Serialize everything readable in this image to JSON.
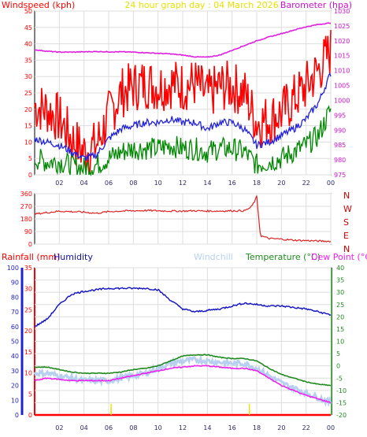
{
  "header": {
    "title": "24 hour graph day : 04 March 2026",
    "windspeed_label": "Windspeed (kph)",
    "barometer_label": "Barometer (hpa)"
  },
  "time_ticks": [
    "02",
    "04",
    "06",
    "08",
    "10",
    "12",
    "14",
    "16",
    "18",
    "20",
    "22",
    "00"
  ],
  "colors": {
    "windspeed": "#ff0000",
    "barometer": "#e020e0",
    "wind_avg": "#2222dd",
    "wind_low": "#008800",
    "direction": "#dd2222",
    "humidity": "#1010c0",
    "windchill": "#b8d0f0",
    "temperature": "#1e8a1e",
    "dewpoint": "#ee22ee",
    "rain": "#ff0000",
    "grid": "#dddddd",
    "axis": "#888888"
  },
  "chart_data": [
    {
      "id": "wind-pressure",
      "type": "line",
      "title": "24 hour graph day : 04 March 2026",
      "ylabel_left": "Windspeed (kph)",
      "ylabel_right": "Barometer (hpa)",
      "y_left_ticks": [
        "0",
        "5",
        "10",
        "15",
        "20",
        "25",
        "30",
        "35",
        "40",
        "45",
        "50"
      ],
      "y_right_ticks": [
        "975",
        "980",
        "985",
        "990",
        "995",
        "1000",
        "1005",
        "1010",
        "1015",
        "1020",
        "1025",
        "1030"
      ],
      "ylim_left": [
        0,
        50
      ],
      "ylim_right": [
        975,
        1030
      ],
      "x": [
        0,
        1,
        2,
        3,
        4,
        5,
        6,
        7,
        8,
        9,
        10,
        11,
        12,
        13,
        14,
        15,
        16,
        17,
        18,
        19,
        20,
        21,
        22,
        23,
        24
      ],
      "series": [
        {
          "name": "Windspeed (kph)",
          "axis": "left",
          "kind": "gust",
          "values": [
            21,
            20,
            17,
            11,
            7,
            9,
            18,
            25,
            27,
            28,
            27,
            28,
            27,
            28,
            24,
            27,
            27,
            25,
            16,
            17,
            19,
            23,
            27,
            32,
            38
          ]
        },
        {
          "name": "Wind average",
          "axis": "left",
          "kind": "avg",
          "values": [
            11,
            10,
            9,
            7,
            5,
            6,
            11,
            14,
            15,
            16,
            16,
            17,
            16,
            16,
            14,
            16,
            16,
            14,
            9,
            10,
            12,
            14,
            17,
            22,
            31
          ]
        },
        {
          "name": "Wind low",
          "axis": "left",
          "kind": "low",
          "values": [
            5,
            4,
            4,
            3,
            2,
            3,
            5,
            7,
            8,
            8,
            8,
            9,
            8,
            8,
            7,
            8,
            8,
            7,
            3,
            4,
            5,
            7,
            9,
            12,
            20
          ]
        },
        {
          "name": "Barometer (hpa)",
          "axis": "right",
          "values": [
            1017,
            1016.5,
            1016.2,
            1016.2,
            1016.3,
            1016.4,
            1016.3,
            1016.3,
            1016.2,
            1016,
            1015.8,
            1015.6,
            1015.2,
            1014.6,
            1014.5,
            1015.2,
            1016.8,
            1018.4,
            1020,
            1021.3,
            1022.4,
            1023.6,
            1024.7,
            1025.5,
            1026
          ]
        }
      ]
    },
    {
      "id": "wind-direction",
      "type": "line",
      "y_left_ticks": [
        "0",
        "90",
        "180",
        "270",
        "360"
      ],
      "direction_letters": [
        "N",
        "W",
        "S",
        "E",
        "N"
      ],
      "ylim": [
        0,
        360
      ],
      "x": [
        0,
        1,
        2,
        3,
        4,
        5,
        6,
        7,
        8,
        9,
        10,
        11,
        12,
        13,
        14,
        15,
        16,
        17,
        17.5,
        17.8,
        18,
        18.3,
        19,
        20,
        21,
        22,
        23,
        24
      ],
      "values": [
        215,
        225,
        235,
        232,
        228,
        220,
        232,
        236,
        238,
        240,
        238,
        236,
        236,
        238,
        236,
        236,
        238,
        238,
        260,
        300,
        340,
        60,
        40,
        35,
        28,
        25,
        22,
        20
      ]
    },
    {
      "id": "temp-humidity",
      "type": "line",
      "labels": {
        "rainfall": "Rainfall (mm)",
        "humidity": "Humidity",
        "windchill": "Windchill",
        "temperature": "Temperature (°C)",
        "dewpoint": "Dew Point (°C)"
      },
      "humidity_ticks": [
        "0",
        "10",
        "20",
        "30",
        "40",
        "50",
        "60",
        "70",
        "80",
        "90",
        "100"
      ],
      "rain_ticks": [
        "0",
        "5",
        "10",
        "15",
        "20",
        "25",
        "30",
        "35"
      ],
      "temp_ticks": [
        "-20",
        "-15",
        "-10",
        "-5",
        "0",
        "5",
        "10",
        "15",
        "20",
        "25",
        "30",
        "35",
        "40"
      ],
      "ylim_humidity": [
        0,
        100
      ],
      "ylim_temp": [
        -20,
        40
      ],
      "x": [
        0,
        1,
        2,
        3,
        4,
        5,
        6,
        7,
        8,
        9,
        10,
        11,
        12,
        13,
        14,
        15,
        16,
        17,
        18,
        19,
        20,
        21,
        22,
        23,
        24
      ],
      "series": [
        {
          "name": "Humidity",
          "axis": "humidity",
          "values": [
            60,
            65,
            75,
            82,
            84,
            85,
            86,
            86,
            86,
            86,
            85,
            78,
            72,
            70,
            71,
            72,
            74,
            76,
            75,
            74,
            74,
            73,
            72,
            70,
            68
          ]
        },
        {
          "name": "Temperature (°C)",
          "axis": "temp",
          "values": [
            -0.5,
            -0.5,
            -1.5,
            -2.5,
            -3,
            -3,
            -3,
            -2.5,
            -1.5,
            -1,
            0,
            2,
            4,
            4.5,
            4.5,
            3.5,
            3,
            3,
            2,
            -1,
            -3.5,
            -5,
            -6.5,
            -7.5,
            -8
          ]
        },
        {
          "name": "Dew Point (°C)",
          "axis": "temp",
          "values": [
            -6,
            -5,
            -5.5,
            -6,
            -6,
            -6,
            -6,
            -5,
            -4,
            -3,
            -2,
            -1,
            -0.5,
            0,
            0,
            -0.5,
            -1,
            -1,
            -2,
            -5,
            -8,
            -10,
            -12,
            -13.5,
            -15
          ]
        },
        {
          "name": "Windchill",
          "axis": "temp",
          "values": [
            -3,
            -3,
            -4,
            -5,
            -6,
            -6,
            -6,
            -5,
            -4,
            -3,
            -1,
            1,
            2,
            2.5,
            2,
            1.5,
            1,
            1,
            -1,
            -4,
            -7,
            -9,
            -11,
            -13,
            -15
          ]
        },
        {
          "name": "Rainfall (mm)",
          "axis": "rain",
          "values": [
            0,
            0,
            0,
            0,
            0,
            0,
            0,
            0,
            0,
            0,
            0,
            0,
            0,
            0,
            0,
            0,
            0,
            0,
            0,
            0,
            0,
            0,
            0,
            0,
            0
          ]
        }
      ]
    }
  ]
}
